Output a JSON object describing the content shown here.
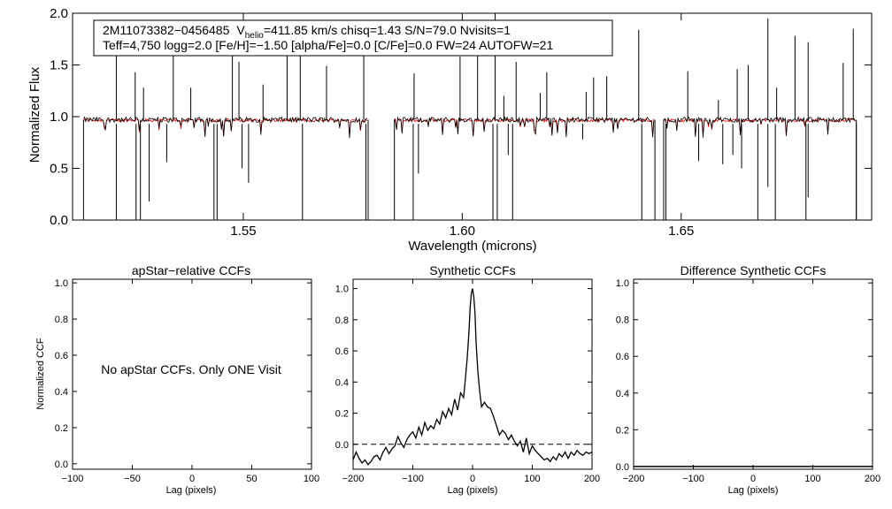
{
  "chart_data": [
    {
      "id": "spectrum",
      "type": "line",
      "xlabel": "Wavelength (microns)",
      "ylabel": "Normalized Flux",
      "xlim": [
        1.511,
        1.6935
      ],
      "ylim": [
        0.0,
        2.0
      ],
      "x_ticks": [
        {
          "v": 1.55,
          "label": "1.55"
        },
        {
          "v": 1.6,
          "label": "1.60"
        },
        {
          "v": 1.65,
          "label": "1.65"
        }
      ],
      "y_ticks": [
        {
          "v": 0.0,
          "label": "0.0"
        },
        {
          "v": 0.5,
          "label": "0.5"
        },
        {
          "v": 1.0,
          "label": "1.0"
        },
        {
          "v": 1.5,
          "label": "1.5"
        },
        {
          "v": 2.0,
          "label": "2.0"
        }
      ],
      "info_line1": {
        "star_id": "2M11073382−0456485",
        "v_symbol": "V",
        "v_subscript": "helio",
        "v_value": "=411.85 km/s  chisq=1.43  S/N=79.0  Nvisits=1"
      },
      "info_line2": "Teff=4,750 logg=2.0 [Fe/H]=−1.50 [alpha/Fe]=0.0 [C/Fe]=0.0 FW=24 AUTOFW=21",
      "series": [
        {
          "name": "observed",
          "color": "#000000",
          "baseline": 0.97
        },
        {
          "name": "synthetic",
          "color": "#dd0000",
          "baseline": 0.965
        }
      ],
      "chips": [
        [
          1.5135,
          1.5785
        ],
        [
          1.5845,
          1.644
        ],
        [
          1.646,
          1.69
        ]
      ],
      "emission_spikes": [
        [
          1.521,
          1.83
        ],
        [
          1.5253,
          1.43
        ],
        [
          1.5272,
          1.28
        ],
        [
          1.534,
          1.82
        ],
        [
          1.538,
          1.28
        ],
        [
          1.5475,
          1.83
        ],
        [
          1.549,
          1.53
        ],
        [
          1.5545,
          1.31
        ],
        [
          1.56,
          1.83
        ],
        [
          1.563,
          1.7
        ],
        [
          1.569,
          1.49
        ],
        [
          1.5775,
          1.63
        ],
        [
          1.589,
          1.42
        ],
        [
          1.5995,
          1.58
        ],
        [
          1.6035,
          1.68
        ],
        [
          1.6075,
          2.0
        ],
        [
          1.6095,
          1.2
        ],
        [
          1.6123,
          1.53
        ],
        [
          1.6178,
          1.23
        ],
        [
          1.6193,
          1.43
        ],
        [
          1.6283,
          1.24
        ],
        [
          1.63,
          1.38
        ],
        [
          1.633,
          1.39
        ],
        [
          1.6403,
          1.84
        ],
        [
          1.6515,
          1.44
        ],
        [
          1.6585,
          1.16
        ],
        [
          1.6628,
          1.46
        ],
        [
          1.6653,
          1.5
        ],
        [
          1.6698,
          1.95
        ],
        [
          1.6718,
          1.28
        ],
        [
          1.676,
          1.78
        ],
        [
          1.679,
          1.72
        ],
        [
          1.687,
          1.52
        ],
        [
          1.6893,
          1.85
        ]
      ],
      "absorption_lines": [
        [
          1.521,
          0.0
        ],
        [
          1.5255,
          0.0
        ],
        [
          1.5265,
          0.0
        ],
        [
          1.5285,
          0.18
        ],
        [
          1.5325,
          0.56
        ],
        [
          1.5433,
          0.0
        ],
        [
          1.544,
          0.0
        ],
        [
          1.5497,
          0.5
        ],
        [
          1.5512,
          0.36
        ],
        [
          1.5635,
          0.0
        ],
        [
          1.578,
          0.0
        ],
        [
          1.5888,
          0.0
        ],
        [
          1.59,
          0.45
        ],
        [
          1.607,
          0.0
        ],
        [
          1.608,
          0.0
        ],
        [
          1.6105,
          0.63
        ],
        [
          1.6115,
          0.0
        ],
        [
          1.6275,
          0.78
        ],
        [
          1.641,
          0.0
        ],
        [
          1.6465,
          0.0
        ],
        [
          1.654,
          0.57
        ],
        [
          1.6595,
          0.54
        ],
        [
          1.6618,
          0.63
        ],
        [
          1.6638,
          0.5
        ],
        [
          1.6675,
          0.0
        ],
        [
          1.6698,
          0.32
        ],
        [
          1.6715,
          0.0
        ],
        [
          1.6785,
          0.0
        ],
        [
          1.679,
          0.22
        ],
        [
          1.69,
          0.0
        ]
      ]
    },
    {
      "id": "apstar",
      "type": "line",
      "title": "apStar−relative CCFs",
      "xlabel": "Lag (pixels)",
      "ylabel": "Normalized CCF",
      "xlim": [
        -100,
        100
      ],
      "ylim": [
        -0.03,
        1.02
      ],
      "x_ticks": [
        {
          "v": -100,
          "label": "−100"
        },
        {
          "v": -50,
          "label": "−50"
        },
        {
          "v": 0,
          "label": "0"
        },
        {
          "v": 50,
          "label": "50"
        },
        {
          "v": 100,
          "label": "100"
        }
      ],
      "y_ticks": [
        {
          "v": 0.0,
          "label": "0.0"
        },
        {
          "v": 0.2,
          "label": "0.2"
        },
        {
          "v": 0.4,
          "label": "0.4"
        },
        {
          "v": 0.6,
          "label": "0.6"
        },
        {
          "v": 0.8,
          "label": "0.8"
        },
        {
          "v": 1.0,
          "label": "1.0"
        }
      ],
      "message": "No apStar CCFs.  Only ONE Visit"
    },
    {
      "id": "synthetic",
      "type": "line",
      "title": "Synthetic CCFs",
      "xlabel": "Lag (pixels)",
      "ylabel": "",
      "xlim": [
        -200,
        200
      ],
      "ylim": [
        -0.16,
        1.06
      ],
      "x_ticks": [
        {
          "v": -200,
          "label": "−200"
        },
        {
          "v": -100,
          "label": "−100"
        },
        {
          "v": 0,
          "label": "0"
        },
        {
          "v": 100,
          "label": "100"
        },
        {
          "v": 200,
          "label": "200"
        }
      ],
      "y_ticks": [
        {
          "v": 0.0,
          "label": "0.0"
        },
        {
          "v": 0.2,
          "label": "0.2"
        },
        {
          "v": 0.4,
          "label": "0.4"
        },
        {
          "v": 0.6,
          "label": "0.6"
        },
        {
          "v": 0.8,
          "label": "0.8"
        },
        {
          "v": 1.0,
          "label": "1.0"
        }
      ],
      "zero_line": 0.0,
      "x": [
        -200,
        -195,
        -190,
        -185,
        -180,
        -175,
        -170,
        -165,
        -160,
        -155,
        -150,
        -145,
        -140,
        -135,
        -130,
        -125,
        -120,
        -115,
        -110,
        -105,
        -100,
        -95,
        -90,
        -85,
        -80,
        -75,
        -70,
        -65,
        -60,
        -55,
        -50,
        -45,
        -40,
        -35,
        -30,
        -25,
        -20,
        -15,
        -12,
        -9,
        -6,
        -4,
        -2,
        0,
        2,
        4,
        6,
        9,
        12,
        15,
        20,
        25,
        30,
        35,
        40,
        45,
        50,
        55,
        60,
        65,
        70,
        75,
        80,
        85,
        90,
        95,
        100,
        105,
        110,
        115,
        120,
        125,
        130,
        135,
        140,
        145,
        150,
        155,
        160,
        165,
        170,
        175,
        180,
        185,
        190,
        195,
        200
      ],
      "values": [
        -0.1,
        -0.05,
        -0.09,
        -0.12,
        -0.1,
        -0.13,
        -0.11,
        -0.08,
        -0.07,
        -0.1,
        -0.05,
        -0.02,
        -0.06,
        -0.03,
        -0.01,
        0.05,
        0.01,
        -0.02,
        0.03,
        0.06,
        0.08,
        0.04,
        0.11,
        0.06,
        0.14,
        0.09,
        0.12,
        0.1,
        0.16,
        0.13,
        0.21,
        0.17,
        0.23,
        0.19,
        0.29,
        0.22,
        0.33,
        0.3,
        0.42,
        0.55,
        0.72,
        0.88,
        0.97,
        1.0,
        0.95,
        0.85,
        0.65,
        0.46,
        0.34,
        0.24,
        0.27,
        0.24,
        0.23,
        0.18,
        0.12,
        0.06,
        0.09,
        0.07,
        0.03,
        0.06,
        0.02,
        -0.01,
        0.02,
        -0.05,
        0.04,
        -0.06,
        -0.01,
        -0.04,
        -0.06,
        -0.08,
        -0.1,
        -0.09,
        -0.11,
        -0.08,
        -0.1,
        -0.06,
        -0.08,
        -0.05,
        -0.09,
        -0.05,
        -0.07,
        -0.04,
        -0.06,
        -0.07,
        -0.05,
        -0.06,
        -0.05
      ]
    },
    {
      "id": "difference",
      "type": "line",
      "title": "Difference Synthetic CCFs",
      "xlabel": "Lag (pixels)",
      "ylabel": "",
      "xlim": [
        -200,
        200
      ],
      "ylim": [
        -0.015,
        1.02
      ],
      "x_ticks": [
        {
          "v": -200,
          "label": "−200"
        },
        {
          "v": -100,
          "label": "−100"
        },
        {
          "v": 0,
          "label": "0"
        },
        {
          "v": 100,
          "label": "100"
        },
        {
          "v": 200,
          "label": "200"
        }
      ],
      "y_ticks": [
        {
          "v": 0.0,
          "label": "0.0"
        },
        {
          "v": 0.2,
          "label": "0.2"
        },
        {
          "v": 0.4,
          "label": "0.4"
        },
        {
          "v": 0.6,
          "label": "0.6"
        },
        {
          "v": 0.8,
          "label": "0.8"
        },
        {
          "v": 1.0,
          "label": "1.0"
        }
      ],
      "zero_line": 0.0
    }
  ]
}
